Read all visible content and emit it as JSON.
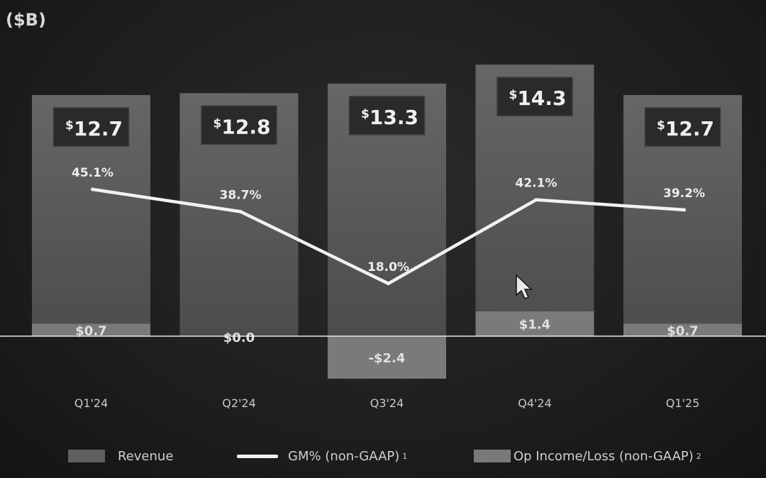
{
  "unit_label": "($B)",
  "colors": {
    "background": "#1f1f1f",
    "revenue_bar": "#5a5a5a",
    "op_income_bar": "#7a7a7a",
    "gm_line": "#f2f2f2",
    "value_box": "#2a2a2a"
  },
  "chart_data": {
    "type": "bar",
    "categories": [
      "Q1'24",
      "Q2'24",
      "Q3'24",
      "Q4'24",
      "Q1'25"
    ],
    "series": [
      {
        "name": "Revenue",
        "type": "bar",
        "values": [
          12.7,
          12.8,
          13.3,
          14.3,
          12.7
        ],
        "labels": [
          "12.7",
          "12.8",
          "13.3",
          "14.3",
          "12.7"
        ]
      },
      {
        "name": "GM% (non-GAAP)",
        "type": "line",
        "values": [
          45.1,
          38.7,
          18.0,
          42.1,
          39.2
        ],
        "labels": [
          "45.1%",
          "38.7%",
          "18.0%",
          "42.1%",
          "39.2%"
        ]
      },
      {
        "name": "Op Income/Loss (non-GAAP)",
        "type": "bar",
        "values": [
          0.7,
          0.0,
          -2.4,
          1.4,
          0.7
        ],
        "labels": [
          "$0.7",
          "$0.0",
          "-$2.4",
          "$1.4",
          "$0.7"
        ]
      }
    ],
    "legend_position": "bottom",
    "grid": false
  },
  "legend": {
    "revenue": "Revenue",
    "gm": "GM% (non-GAAP)",
    "gm_note": "1",
    "op": "Op Income/Loss (non-GAAP)",
    "op_note": "2"
  }
}
